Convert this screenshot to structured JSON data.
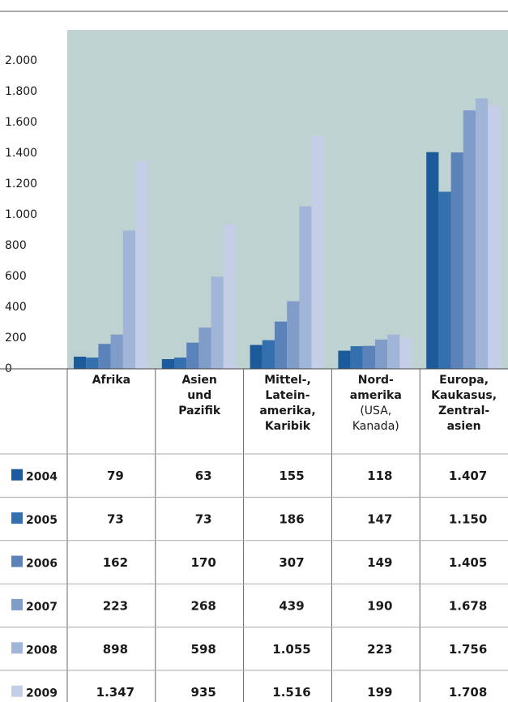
{
  "chart_data": {
    "type": "bar",
    "categories": [
      "Afrika",
      "Asien\nund\nPazifik",
      "Mittel-,\nLatein-\namerika,\nKaribik",
      "Nord-\namerika\n(USA,\nKanada)",
      "Europa,\nKaukasus,\nZentral-\nasien"
    ],
    "series": [
      {
        "name": "2004",
        "color": "#1b5b9b",
        "values": [
          79,
          63,
          155,
          118,
          1407
        ],
        "value_labels": [
          "79",
          "63",
          "155",
          "118",
          "1.407"
        ]
      },
      {
        "name": "2005",
        "color": "#3470ad",
        "values": [
          73,
          73,
          186,
          147,
          1150
        ],
        "value_labels": [
          "73",
          "73",
          "186",
          "147",
          "1.150"
        ]
      },
      {
        "name": "2006",
        "color": "#5c82ba",
        "values": [
          162,
          170,
          307,
          149,
          1405
        ],
        "value_labels": [
          "162",
          "170",
          "307",
          "149",
          "1.405"
        ]
      },
      {
        "name": "2007",
        "color": "#809dc9",
        "values": [
          223,
          268,
          439,
          190,
          1678
        ],
        "value_labels": [
          "223",
          "268",
          "439",
          "190",
          "1.678"
        ]
      },
      {
        "name": "2008",
        "color": "#a1b5d9",
        "values": [
          898,
          598,
          1055,
          223,
          1756
        ],
        "value_labels": [
          "898",
          "598",
          "1.055",
          "223",
          "1.756"
        ]
      },
      {
        "name": "2009",
        "color": "#c4cfe7",
        "values": [
          1347,
          935,
          1516,
          199,
          1708
        ],
        "value_labels": [
          "1.347",
          "935",
          "1.516",
          "199",
          "1.708"
        ]
      }
    ],
    "ylim": [
      0,
      2200
    ],
    "yticks": [
      0,
      200,
      400,
      600,
      800,
      {
        "value": 1000,
        "label": "1.000"
      },
      {
        "value": 1200,
        "label": "1.200"
      },
      {
        "value": 1400,
        "label": "1.400"
      },
      {
        "value": 1600,
        "label": "1.600"
      },
      {
        "value": 1800,
        "label": "1.800"
      },
      {
        "value": 2000,
        "label": "2.000"
      }
    ],
    "grid": false
  }
}
